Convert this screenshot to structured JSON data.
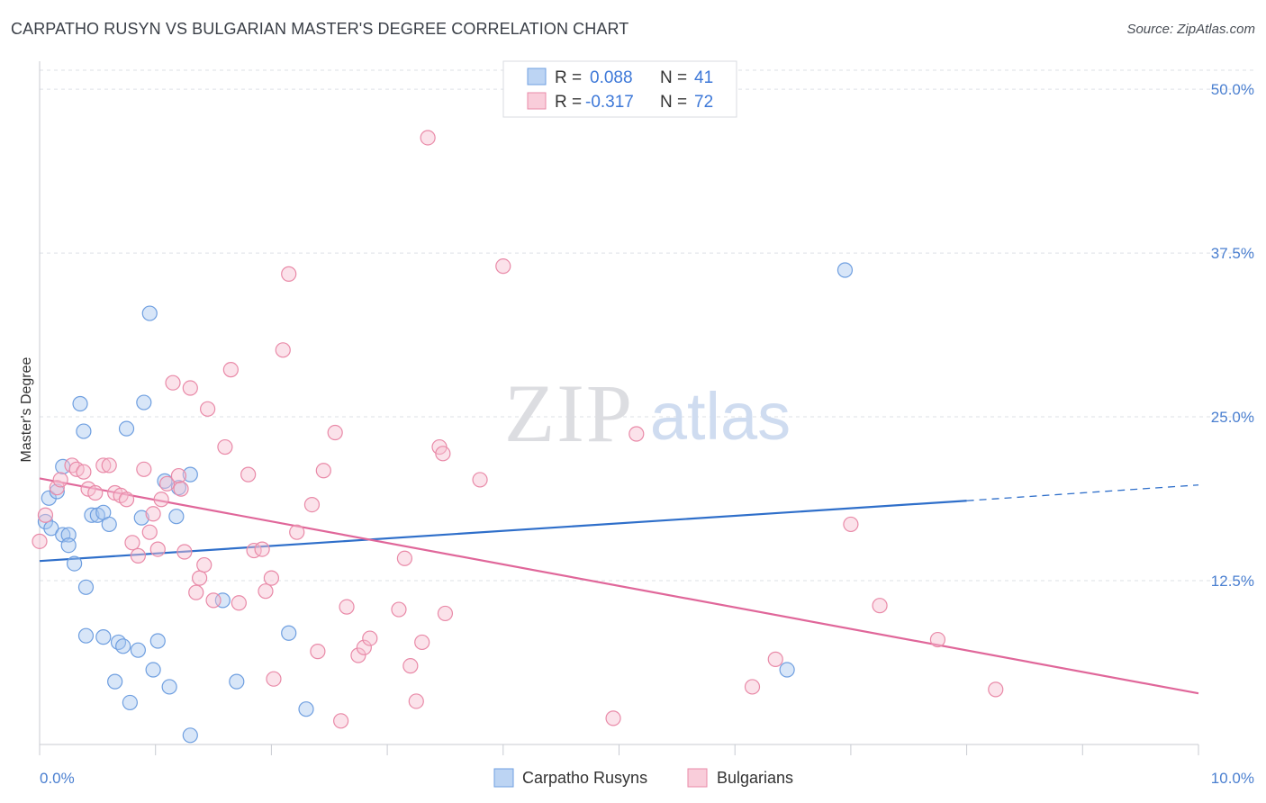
{
  "header": {
    "title": "CARPATHO RUSYN VS BULGARIAN MASTER'S DEGREE CORRELATION CHART",
    "source": "Source: ZipAtlas.com"
  },
  "watermark": {
    "part1": "ZIP",
    "part2": "atlas"
  },
  "legend": {
    "rows": [
      {
        "r_label": "R = ",
        "r_value": "0.088",
        "n_label": "N = ",
        "n_value": "41"
      },
      {
        "r_label": "R = ",
        "r_value": "-0.317",
        "n_label": "N = ",
        "n_value": "72"
      }
    ]
  },
  "colors": {
    "blue_fill": "#a9c8f0",
    "blue_stroke": "#6f9fe0",
    "blue_line": "#2f6fca",
    "pink_fill": "#f7bfd0",
    "pink_stroke": "#e98aa8",
    "pink_line": "#e0679a",
    "grid": "#dde0e6",
    "axis": "#c8cbd2"
  },
  "chart_data": {
    "type": "scatter",
    "xlabel": "",
    "ylabel": "Master's Degree",
    "xlim": [
      0,
      10
    ],
    "ylim": [
      0,
      52
    ],
    "x_tick_labels": [
      {
        "value": 0,
        "label": "0.0%"
      },
      {
        "value": 10,
        "label": "10.0%"
      }
    ],
    "y_tick_labels": [
      {
        "value": 12.5,
        "label": "12.5%"
      },
      {
        "value": 25,
        "label": "25.0%"
      },
      {
        "value": 37.5,
        "label": "37.5%"
      },
      {
        "value": 50,
        "label": "50.0%"
      }
    ],
    "series": [
      {
        "name": "Carpatho Rusyns",
        "color": "#a9c8f0",
        "trend": {
          "x0": 0,
          "y0": 14.0,
          "x1": 8.0,
          "y1": 18.6,
          "dash_to_x": 10.0,
          "dash_to_y": 19.8
        },
        "points": [
          [
            0.05,
            17.0
          ],
          [
            0.08,
            18.8
          ],
          [
            0.1,
            16.5
          ],
          [
            0.15,
            19.3
          ],
          [
            0.2,
            16.0
          ],
          [
            0.2,
            21.2
          ],
          [
            0.25,
            16.0
          ],
          [
            0.25,
            15.2
          ],
          [
            0.3,
            13.8
          ],
          [
            0.35,
            26.0
          ],
          [
            0.38,
            23.9
          ],
          [
            0.4,
            12.0
          ],
          [
            0.4,
            8.3
          ],
          [
            0.45,
            17.5
          ],
          [
            0.5,
            17.5
          ],
          [
            0.55,
            17.7
          ],
          [
            0.55,
            8.2
          ],
          [
            0.6,
            16.8
          ],
          [
            0.65,
            4.8
          ],
          [
            0.68,
            7.8
          ],
          [
            0.72,
            7.5
          ],
          [
            0.75,
            24.1
          ],
          [
            0.78,
            3.2
          ],
          [
            0.85,
            7.2
          ],
          [
            0.88,
            17.3
          ],
          [
            0.9,
            26.1
          ],
          [
            0.95,
            32.9
          ],
          [
            0.98,
            5.7
          ],
          [
            1.02,
            7.9
          ],
          [
            1.08,
            20.1
          ],
          [
            1.12,
            4.4
          ],
          [
            1.18,
            17.4
          ],
          [
            1.2,
            19.6
          ],
          [
            1.3,
            20.6
          ],
          [
            1.3,
            0.7
          ],
          [
            1.58,
            11.0
          ],
          [
            1.7,
            4.8
          ],
          [
            2.15,
            8.5
          ],
          [
            2.3,
            2.7
          ],
          [
            6.45,
            5.7
          ],
          [
            6.95,
            36.2
          ]
        ]
      },
      {
        "name": "Bulgarians",
        "color": "#f7bfd0",
        "trend": {
          "x0": 0,
          "y0": 20.3,
          "x1": 10.0,
          "y1": 3.9
        },
        "points": [
          [
            0.0,
            15.5
          ],
          [
            0.05,
            17.5
          ],
          [
            0.15,
            19.6
          ],
          [
            0.18,
            20.2
          ],
          [
            0.28,
            21.3
          ],
          [
            0.32,
            21.0
          ],
          [
            0.38,
            20.8
          ],
          [
            0.42,
            19.5
          ],
          [
            0.48,
            19.2
          ],
          [
            0.55,
            21.3
          ],
          [
            0.6,
            21.3
          ],
          [
            0.65,
            19.2
          ],
          [
            0.7,
            19.0
          ],
          [
            0.75,
            18.7
          ],
          [
            0.8,
            15.4
          ],
          [
            0.85,
            14.4
          ],
          [
            0.9,
            21.0
          ],
          [
            0.95,
            16.2
          ],
          [
            0.98,
            17.6
          ],
          [
            1.02,
            14.9
          ],
          [
            1.05,
            18.7
          ],
          [
            1.1,
            19.9
          ],
          [
            1.15,
            27.6
          ],
          [
            1.2,
            20.5
          ],
          [
            1.22,
            19.5
          ],
          [
            1.25,
            14.7
          ],
          [
            1.3,
            27.2
          ],
          [
            1.35,
            11.6
          ],
          [
            1.38,
            12.7
          ],
          [
            1.42,
            13.7
          ],
          [
            1.45,
            25.6
          ],
          [
            1.5,
            11.0
          ],
          [
            1.6,
            22.7
          ],
          [
            1.65,
            28.6
          ],
          [
            1.72,
            10.8
          ],
          [
            1.8,
            20.6
          ],
          [
            1.85,
            14.8
          ],
          [
            1.92,
            14.9
          ],
          [
            1.95,
            11.7
          ],
          [
            2.0,
            12.7
          ],
          [
            2.02,
            5.0
          ],
          [
            2.1,
            30.1
          ],
          [
            2.15,
            35.9
          ],
          [
            2.22,
            16.2
          ],
          [
            2.35,
            18.3
          ],
          [
            2.4,
            7.1
          ],
          [
            2.45,
            20.9
          ],
          [
            2.55,
            23.8
          ],
          [
            2.6,
            1.8
          ],
          [
            2.65,
            10.5
          ],
          [
            2.75,
            6.8
          ],
          [
            2.8,
            7.4
          ],
          [
            2.85,
            8.1
          ],
          [
            3.1,
            10.3
          ],
          [
            3.15,
            14.2
          ],
          [
            3.2,
            6.0
          ],
          [
            3.25,
            3.3
          ],
          [
            3.3,
            7.8
          ],
          [
            3.35,
            46.3
          ],
          [
            3.45,
            22.7
          ],
          [
            3.48,
            22.2
          ],
          [
            3.5,
            10.0
          ],
          [
            3.8,
            20.2
          ],
          [
            4.0,
            36.5
          ],
          [
            4.95,
            2.0
          ],
          [
            5.15,
            23.7
          ],
          [
            6.15,
            4.4
          ],
          [
            6.35,
            6.5
          ],
          [
            7.0,
            16.8
          ],
          [
            7.25,
            10.6
          ],
          [
            7.75,
            8.0
          ],
          [
            8.25,
            4.2
          ]
        ]
      }
    ]
  }
}
